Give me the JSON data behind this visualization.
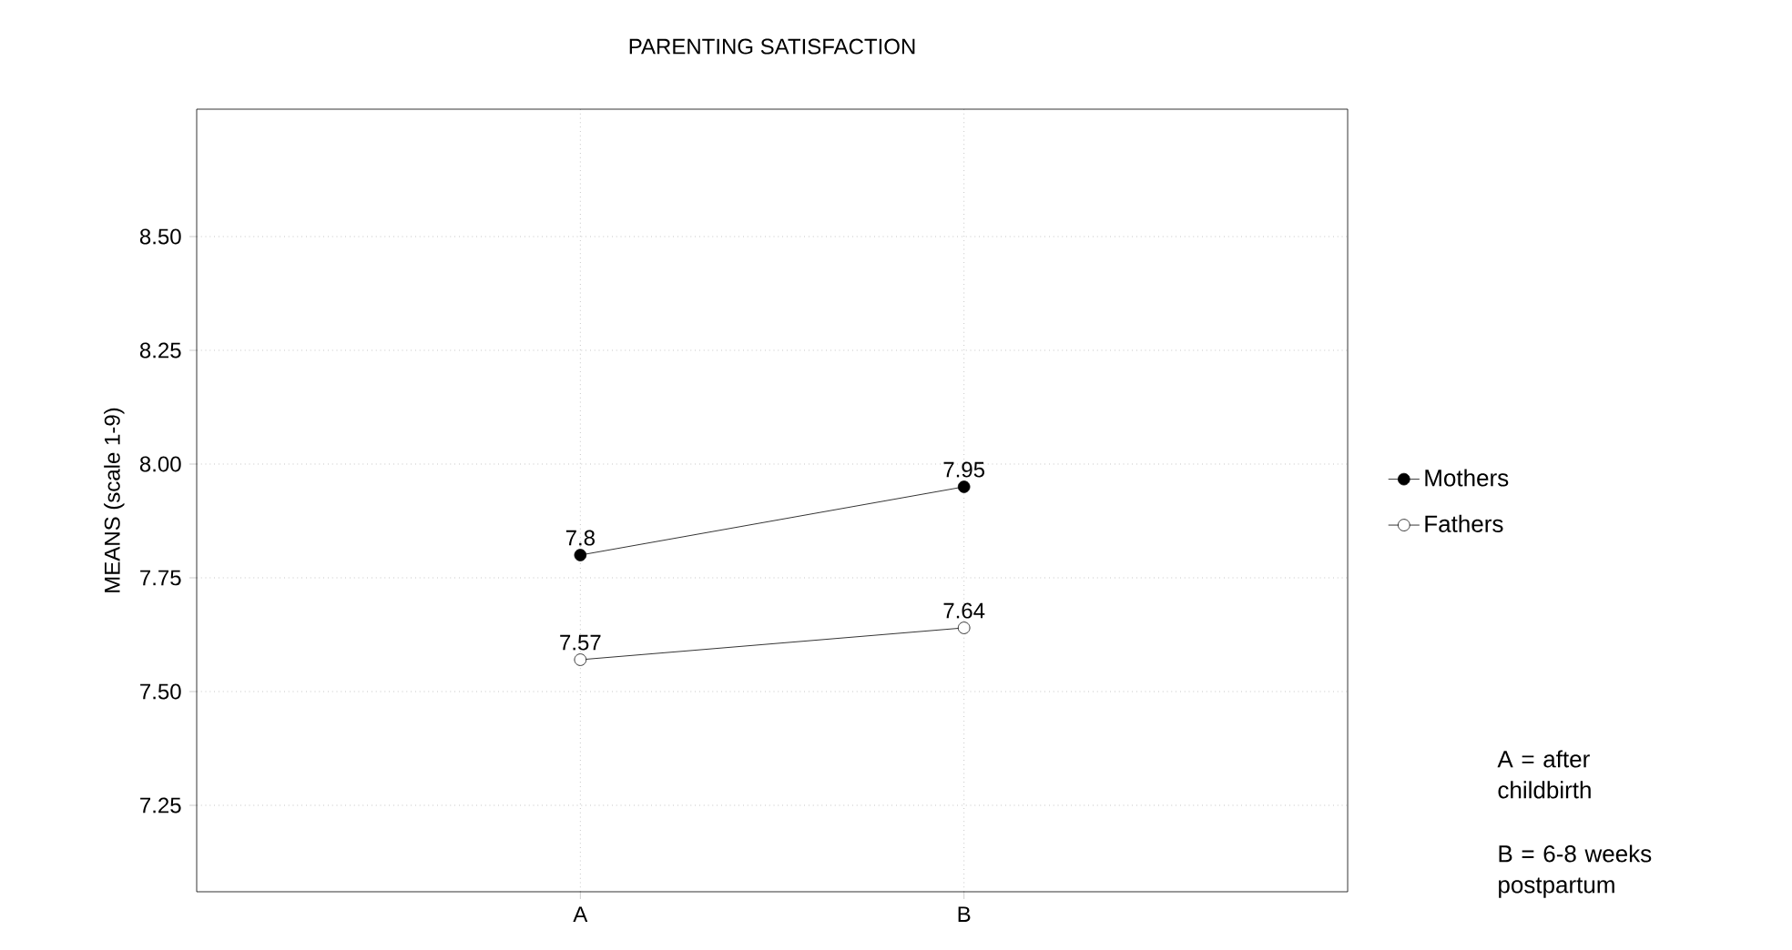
{
  "chart_data": {
    "type": "line",
    "title": "PARENTING SATISFACTION",
    "ylabel": "MEANS (scale 1-9)",
    "categories": [
      "A",
      "B"
    ],
    "series": [
      {
        "name": "Mothers",
        "color": "#000000",
        "values": [
          7.8,
          7.95
        ]
      },
      {
        "name": "Fathers",
        "color": "#000000",
        "values": [
          7.57,
          7.64
        ]
      }
    ],
    "ylim": [
      7.06,
      8.78
    ],
    "yticks": [
      7.25,
      {
        "value": 7.5,
        "label": "7.50"
      },
      7.75,
      {
        "value": 8.0,
        "label": "8.00"
      },
      8.25,
      {
        "value": 8.5,
        "label": "8.50"
      }
    ],
    "grid": true,
    "legend": "right",
    "marker": "circle",
    "data_labels": true,
    "annotations": [
      "A = after childbirth",
      "B = 6-8 weeks postpartum"
    ]
  }
}
